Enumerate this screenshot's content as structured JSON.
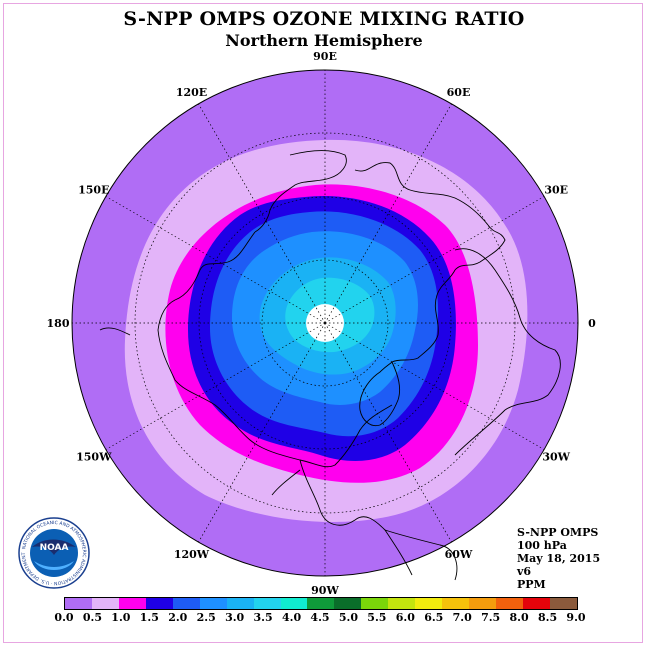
{
  "header": {
    "title": "S-NPP OMPS OZONE MIXING RATIO",
    "subtitle": "Northern Hemisphere"
  },
  "map": {
    "projection": "north-polar-stereographic",
    "longitude_labels": [
      {
        "text": "90E",
        "lon": 90
      },
      {
        "text": "60E",
        "lon": 60
      },
      {
        "text": "30E",
        "lon": 30
      },
      {
        "text": "0",
        "lon": 0
      },
      {
        "text": "30W",
        "lon": -30
      },
      {
        "text": "60W",
        "lon": -60
      },
      {
        "text": "90W",
        "lon": -90
      },
      {
        "text": "120W",
        "lon": -120
      },
      {
        "text": "150W",
        "lon": -150
      },
      {
        "text": "180",
        "lon": 180
      },
      {
        "text": "150E",
        "lon": 150
      },
      {
        "text": "120E",
        "lon": 120
      }
    ],
    "pole_region": "no data"
  },
  "info_block": {
    "lines": [
      "S-NPP OMPS",
      "100 hPa",
      "May 18, 2015",
      "v6",
      "PPM"
    ]
  },
  "colorbar": {
    "tick_labels": [
      "0.0",
      "0.5",
      "1.0",
      "1.5",
      "2.0",
      "2.5",
      "3.0",
      "3.5",
      "4.0",
      "4.5",
      "5.0",
      "5.5",
      "6.0",
      "6.5",
      "7.0",
      "7.5",
      "8.0",
      "8.5",
      "9.0"
    ],
    "colors": [
      "#b06df5",
      "#e3b4f9",
      "#ff00ee",
      "#1f00e6",
      "#1e5cf5",
      "#1e90ff",
      "#1ab2f4",
      "#22d3ee",
      "#10ecd0",
      "#0f9b3a",
      "#0a6e2a",
      "#7bd60a",
      "#c4e40e",
      "#f2ec0e",
      "#f6c20b",
      "#f49c0d",
      "#f2610d",
      "#e4030b",
      "#8b5a3c"
    ]
  },
  "logo": {
    "text": "NOAA",
    "ring_text": "NATIONAL OCEANIC AND ATMOSPHERIC ADMINISTRATION · U.S. DEPARTMENT OF COMMERCE"
  }
}
